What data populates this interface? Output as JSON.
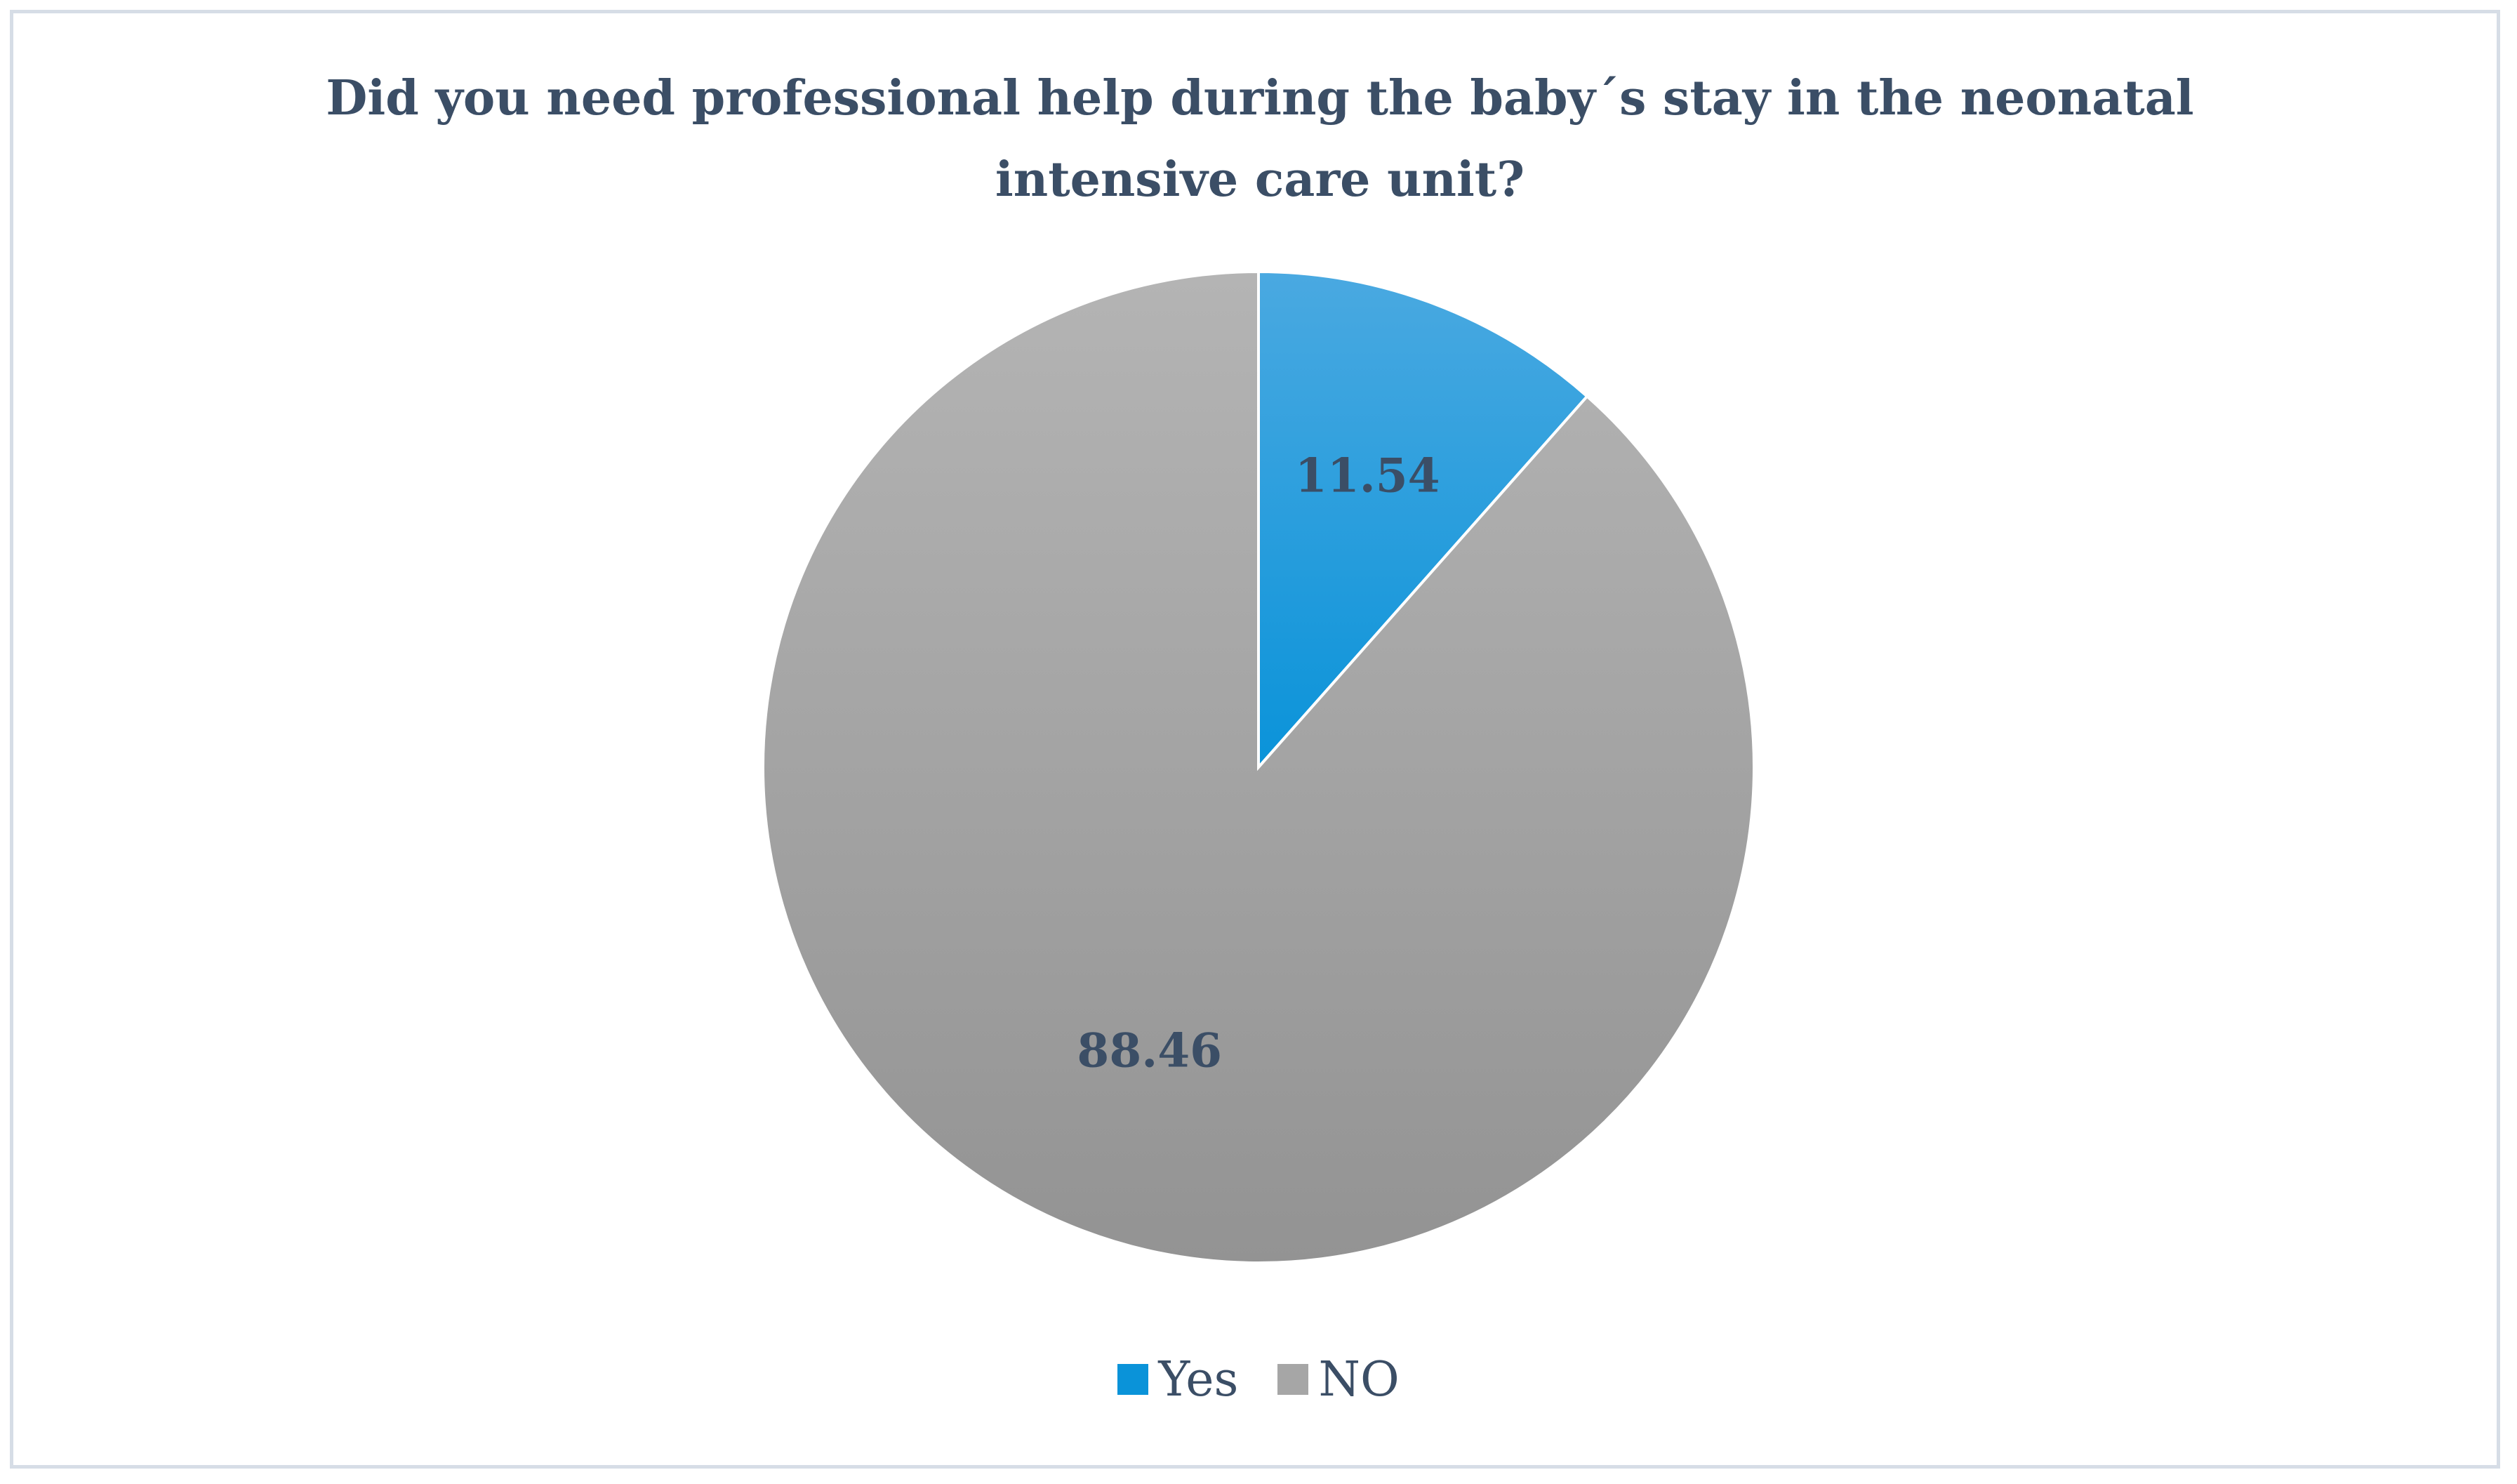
{
  "chart_data": {
    "type": "pie",
    "title": "Did you need professional help during the baby´s stay in the neonatal intensive care unit?",
    "categories": [
      "Yes",
      "NO"
    ],
    "values": [
      11.54,
      88.46
    ],
    "data_labels": [
      "11.54",
      "88.46"
    ],
    "colors": [
      "#0a93d9",
      "#a6a6a6"
    ],
    "start_angle_deg": 0,
    "direction": "clockwise",
    "legend_position": "bottom"
  }
}
